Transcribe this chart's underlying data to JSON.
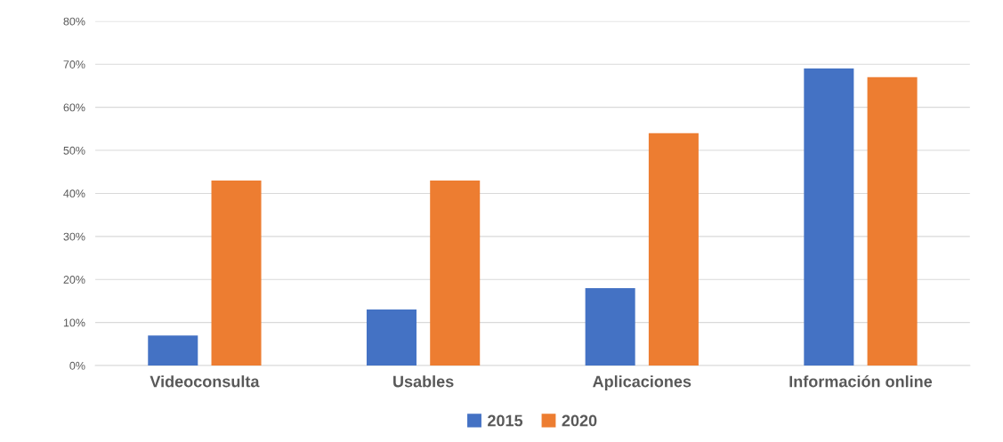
{
  "chart_data": {
    "type": "bar",
    "categories": [
      "Videoconsulta",
      "Usables",
      "Aplicaciones",
      "Información online"
    ],
    "series": [
      {
        "name": "2015",
        "color": "#4472c4",
        "values": [
          7,
          13,
          18,
          69
        ]
      },
      {
        "name": "2020",
        "color": "#ed7d31",
        "values": [
          43,
          43,
          54,
          67
        ]
      }
    ],
    "ylim": [
      0,
      80
    ],
    "yticks": [
      {
        "value": 0,
        "label": "0%"
      },
      {
        "value": 10,
        "label": "10%"
      },
      {
        "value": 20,
        "label": "20%"
      },
      {
        "value": 30,
        "label": "30%"
      },
      {
        "value": 40,
        "label": "40%"
      },
      {
        "value": 50,
        "label": "50%"
      },
      {
        "value": 60,
        "label": "60%"
      },
      {
        "value": 70,
        "label": "70%"
      },
      {
        "value": 80,
        "label": "80%"
      }
    ],
    "grid": "y",
    "legend": "bottom"
  }
}
